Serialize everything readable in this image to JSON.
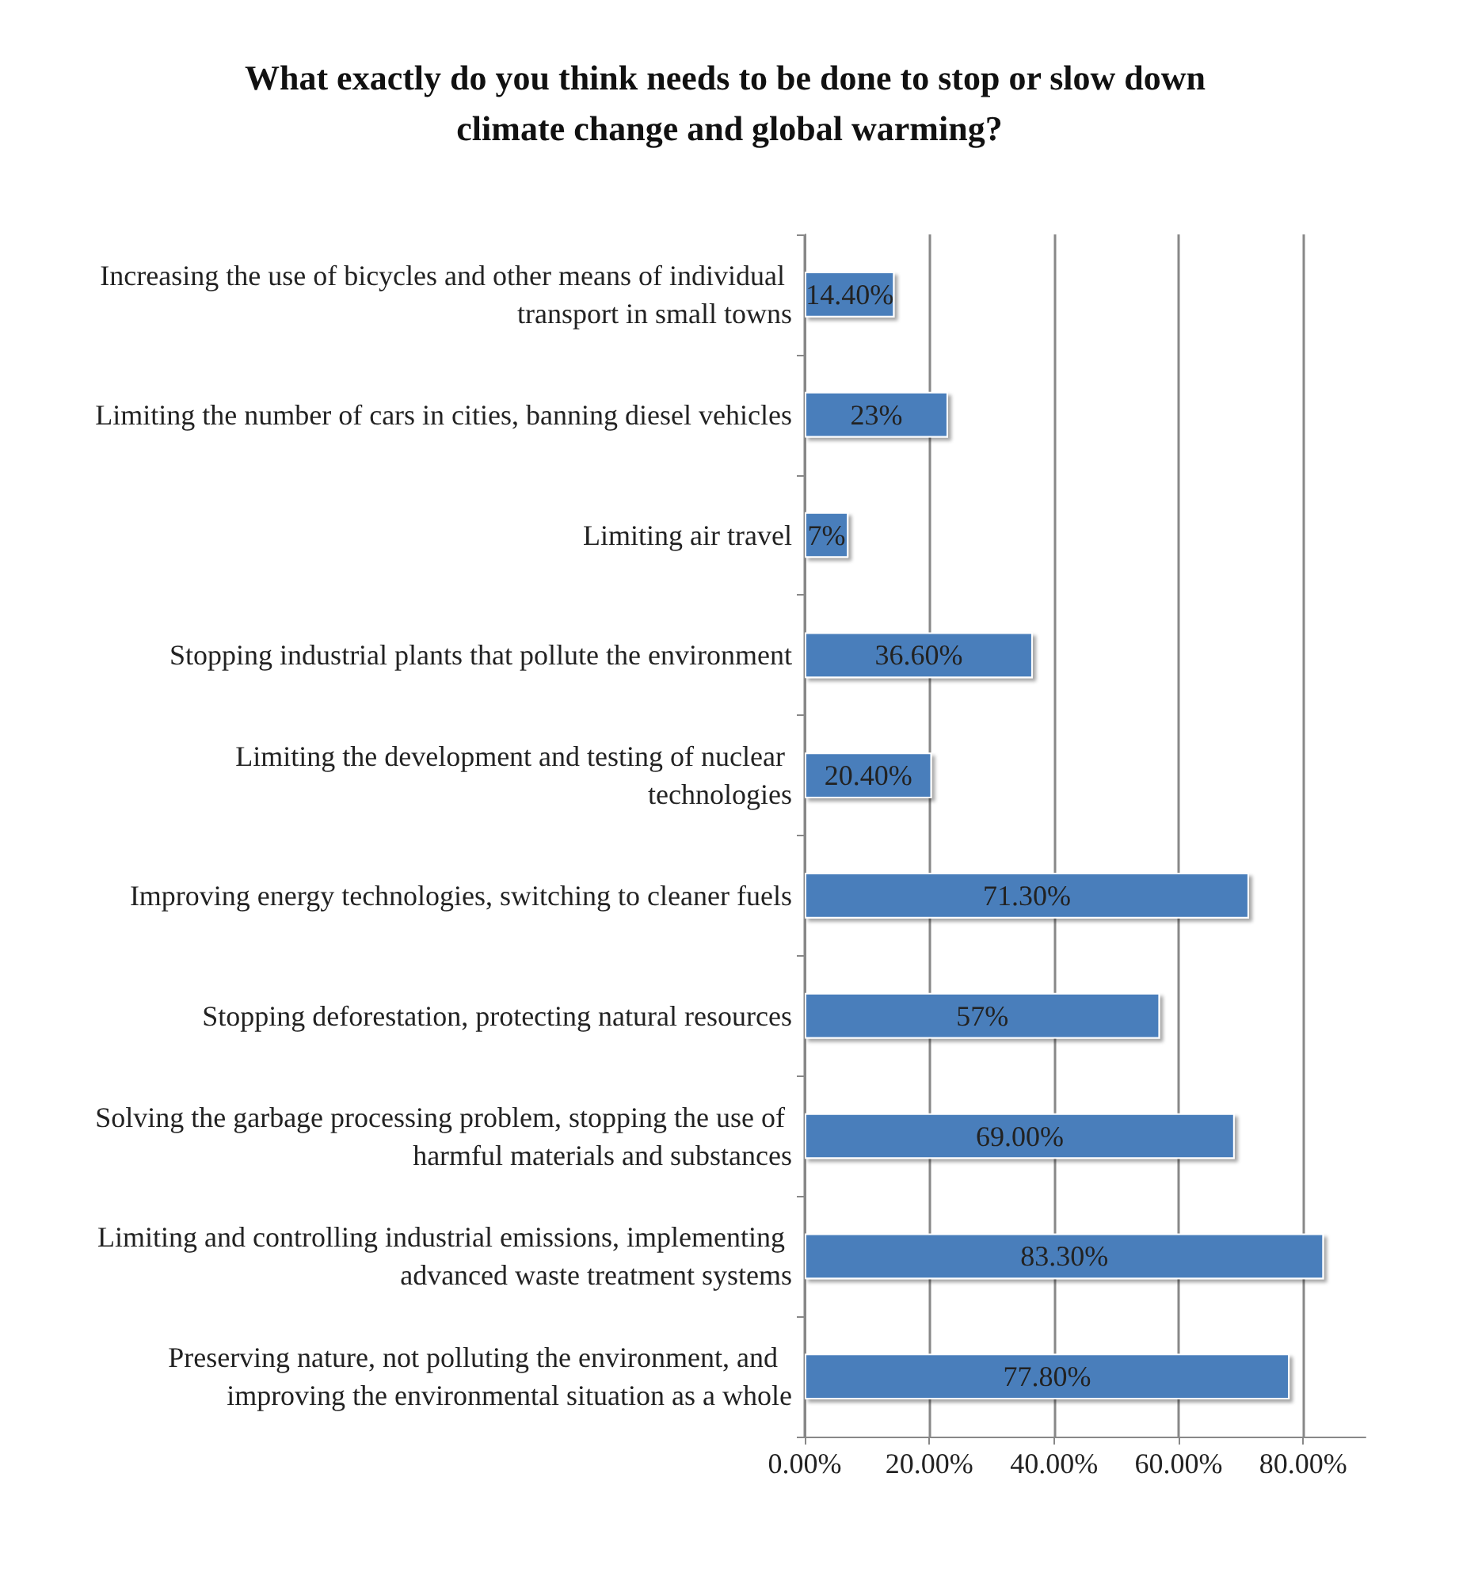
{
  "chart_data": {
    "type": "bar",
    "orientation": "horizontal",
    "title": "What exactly do you think needs to be done to stop or slow down climate change and global warming?",
    "categories": [
      "Increasing the use of bicycles and other means of individual transport in small towns",
      "Limiting the number of cars in cities, banning diesel vehicles",
      "Limiting air travel",
      "Stopping industrial plants that pollute the environment",
      "Limiting the development and testing of nuclear technologies",
      "Improving energy technologies, switching to cleaner fuels",
      "Stopping deforestation, protecting natural resources",
      "Solving the garbage processing problem, stopping the use of harmful materials and substances",
      "Limiting and controlling industrial emissions, implementing advanced waste treatment systems",
      "Preserving nature, not polluting the environment, and  improving the environmental situation as a whole"
    ],
    "values": [
      14.4,
      23,
      7,
      36.6,
      20.4,
      71.3,
      57,
      69,
      83.3,
      77.8
    ],
    "value_labels": [
      "14.40%",
      "23%",
      "7%",
      "36.60%",
      "20.40%",
      "71.30%",
      "57%",
      "69.00%",
      "83.30%",
      "77.80%"
    ],
    "color": "#4a7ebb",
    "xlim": [
      0,
      90
    ],
    "xticks": [
      {
        "value": 0,
        "label": "0.00%"
      },
      {
        "value": 20,
        "label": "20.00%"
      },
      {
        "value": 40,
        "label": "40.00%"
      },
      {
        "value": 60,
        "label": "60.00%"
      },
      {
        "value": 80,
        "label": "80.00%"
      }
    ],
    "grid": "x"
  }
}
